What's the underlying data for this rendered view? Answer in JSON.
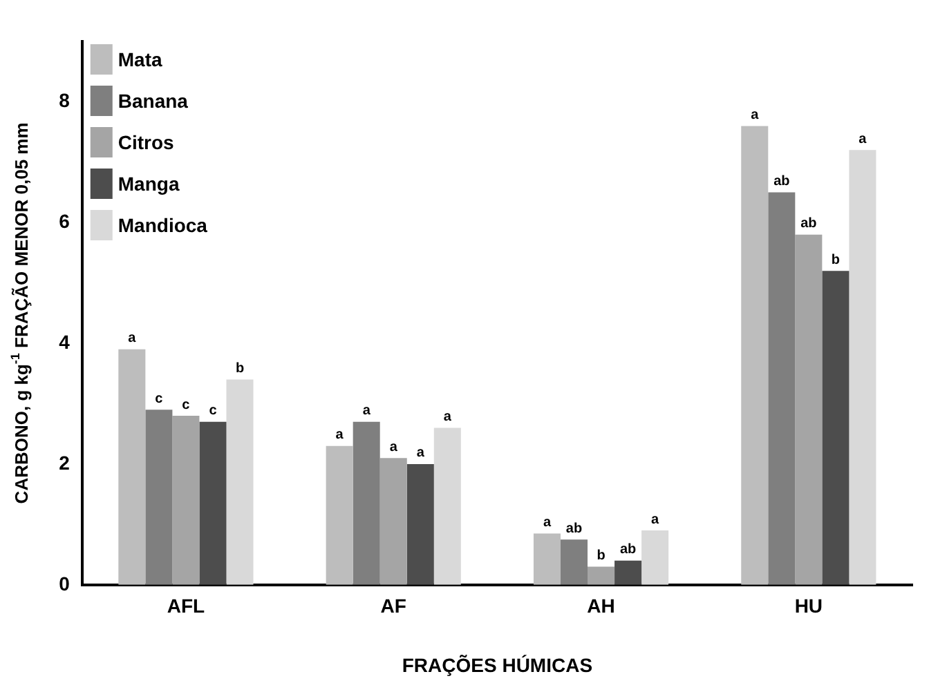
{
  "chart_data": {
    "type": "bar",
    "xlabel": "FRAÇÕES HÚMICAS",
    "ylabel": "CARBONO, g kg$^{-1}$ FRAÇÃO MENOR 0,05 mm",
    "categories": [
      "AFL",
      "AF",
      "AH",
      "HU"
    ],
    "series": [
      {
        "name": "Mata",
        "color": "#bdbdbd",
        "values": [
          3.9,
          2.3,
          0.85,
          7.6
        ],
        "value_labels": [
          "a",
          "a",
          "a",
          "a"
        ]
      },
      {
        "name": "Banana",
        "color": "#7f7f7f",
        "values": [
          2.9,
          2.7,
          0.75,
          6.5
        ],
        "value_labels": [
          "c",
          "a",
          "ab",
          "ab"
        ]
      },
      {
        "name": "Citros",
        "color": "#a5a5a5",
        "values": [
          2.8,
          2.1,
          0.3,
          5.8
        ],
        "value_labels": [
          "c",
          "a",
          "b",
          "ab"
        ]
      },
      {
        "name": "Manga",
        "color": "#4d4d4d",
        "values": [
          2.7,
          2.0,
          0.4,
          5.2
        ],
        "value_labels": [
          "c",
          "a",
          "ab",
          "b"
        ]
      },
      {
        "name": "Mandioca",
        "color": "#d9d9d9",
        "values": [
          3.4,
          2.6,
          0.9,
          7.2
        ],
        "value_labels": [
          "b",
          "a",
          "a",
          "a"
        ]
      }
    ],
    "ylim": [
      0,
      9
    ],
    "yticks": [
      0,
      2,
      4,
      6,
      8
    ],
    "grid": false,
    "legend": "top left"
  }
}
